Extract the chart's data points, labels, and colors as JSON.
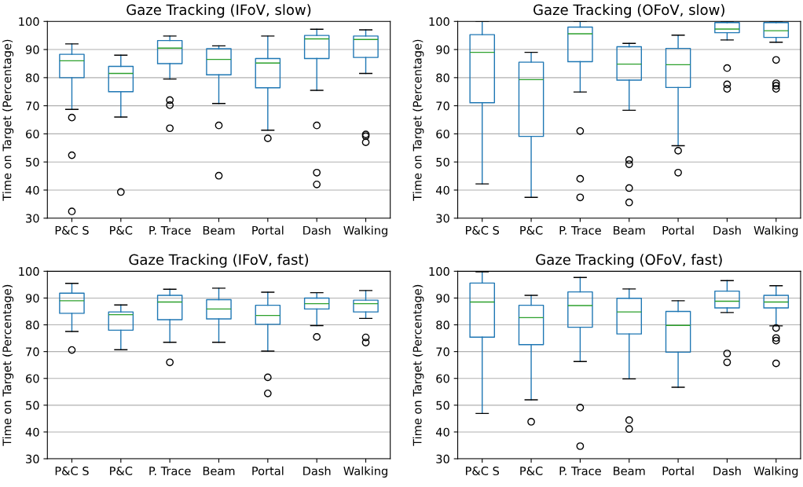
{
  "chart_data": [
    {
      "type": "box",
      "title": "Gaze Tracking (IFoV, slow)",
      "ylabel": "Time on Target (Percentage)",
      "categories": [
        "P&C S",
        "P&C",
        "P. Trace",
        "Beam",
        "Portal",
        "Dash",
        "Walking"
      ],
      "ylim": [
        30,
        100
      ],
      "yticks": [
        30,
        40,
        50,
        60,
        70,
        80,
        90,
        100
      ],
      "grid": "y",
      "legend": false,
      "series": [
        {
          "color": "#1f77b4",
          "boxes": [
            {
              "low": 68.7,
              "q1": 80,
              "median": 86,
              "q3": 88.3,
              "high": 92,
              "outliers": [
                65.8,
                52.4,
                32.4
              ]
            },
            {
              "low": 66,
              "q1": 75,
              "median": 81.5,
              "q3": 84,
              "high": 88,
              "outliers": [
                39.3
              ]
            },
            {
              "low": 79.5,
              "q1": 85,
              "median": 90.5,
              "q3": 93.2,
              "high": 94.8,
              "outliers": [
                72,
                70.2,
                62
              ]
            },
            {
              "low": 70.8,
              "q1": 81,
              "median": 86.5,
              "q3": 90.3,
              "high": 91.3,
              "outliers": [
                63,
                45.1
              ]
            },
            {
              "low": 61.3,
              "q1": 76.4,
              "median": 85.2,
              "q3": 86.8,
              "high": 94.8,
              "outliers": [
                58.4
              ]
            },
            {
              "low": 75.5,
              "q1": 86.8,
              "median": 93.8,
              "q3": 95,
              "high": 97.2,
              "outliers": [
                63,
                46.2,
                42
              ]
            },
            {
              "low": 81.5,
              "q1": 87.2,
              "median": 93.6,
              "q3": 94.8,
              "high": 97,
              "outliers": [
                59.8,
                59.2,
                57
              ]
            }
          ]
        }
      ]
    },
    {
      "type": "box",
      "title": "Gaze Tracking (OFoV, slow)",
      "ylabel": "Time on Target (Percentage)",
      "categories": [
        "P&C S",
        "P&C",
        "P. Trace",
        "Beam",
        "Portal",
        "Dash",
        "Walking"
      ],
      "ylim": [
        30,
        100
      ],
      "yticks": [
        30,
        40,
        50,
        60,
        70,
        80,
        90,
        100
      ],
      "grid": "y",
      "legend": false,
      "series": [
        {
          "color": "#1f77b4",
          "boxes": [
            {
              "low": 42.2,
              "q1": 71.1,
              "median": 89,
              "q3": 95.3,
              "high": 100
            },
            {
              "low": 37.4,
              "q1": 59.1,
              "median": 79.3,
              "q3": 85.5,
              "high": 89
            },
            {
              "low": 74.9,
              "q1": 85.7,
              "median": 95.6,
              "q3": 98,
              "high": 100,
              "outliers": [
                61,
                44,
                37.4
              ]
            },
            {
              "low": 68.4,
              "q1": 79.1,
              "median": 84.8,
              "q3": 91,
              "high": 92.2,
              "outliers": [
                50.7,
                49.2,
                40.7,
                35.6
              ]
            },
            {
              "low": 55.8,
              "q1": 76.5,
              "median": 84.6,
              "q3": 90.4,
              "high": 95.1,
              "outliers": [
                54,
                46.2
              ]
            },
            {
              "low": 93.4,
              "q1": 96,
              "median": 97.3,
              "q3": 99.6,
              "high": 100,
              "outliers": [
                83.4,
                77.6,
                76
              ]
            },
            {
              "low": 92.6,
              "q1": 94.3,
              "median": 96.7,
              "q3": 99.6,
              "high": 100,
              "outliers": [
                86.3,
                78,
                77.1,
                76
              ]
            }
          ]
        }
      ]
    },
    {
      "type": "box",
      "title": "Gaze Tracking (IFoV, fast)",
      "ylabel": "Time on Target (Percentage)",
      "categories": [
        "P&C S",
        "P&C",
        "P. Trace",
        "Beam",
        "Portal",
        "Dash",
        "Walking"
      ],
      "ylim": [
        30,
        100
      ],
      "yticks": [
        30,
        40,
        50,
        60,
        70,
        80,
        90,
        100
      ],
      "grid": "y",
      "legend": false,
      "series": [
        {
          "color": "#1f77b4",
          "boxes": [
            {
              "low": 77.5,
              "q1": 84.3,
              "median": 89,
              "q3": 91.8,
              "high": 95.5,
              "outliers": [
                70.6
              ]
            },
            {
              "low": 70.7,
              "q1": 78,
              "median": 83.8,
              "q3": 84.8,
              "high": 87.4
            },
            {
              "low": 73.5,
              "q1": 81.9,
              "median": 88.5,
              "q3": 91,
              "high": 93.3,
              "outliers": [
                66
              ]
            },
            {
              "low": 73.5,
              "q1": 82.2,
              "median": 85.9,
              "q3": 89.4,
              "high": 93.7
            },
            {
              "low": 70.2,
              "q1": 80.2,
              "median": 83.5,
              "q3": 87.3,
              "high": 92.2,
              "outliers": [
                60.4,
                54.4
              ]
            },
            {
              "low": 79.7,
              "q1": 85.9,
              "median": 87.9,
              "q3": 90,
              "high": 92,
              "outliers": [
                75.5
              ]
            },
            {
              "low": 82.4,
              "q1": 84.8,
              "median": 87.9,
              "q3": 89.2,
              "high": 92.8,
              "outliers": [
                75.3,
                73.4
              ]
            }
          ]
        }
      ]
    },
    {
      "type": "box",
      "title": "Gaze Tracking (OFoV, fast)",
      "ylabel": "Time on Target (Percentage)",
      "categories": [
        "P&C S",
        "P&C",
        "P. Trace",
        "Beam",
        "Portal",
        "Dash",
        "Walking"
      ],
      "ylim": [
        30,
        100
      ],
      "yticks": [
        30,
        40,
        50,
        60,
        70,
        80,
        90,
        100
      ],
      "grid": "y",
      "legend": false,
      "series": [
        {
          "color": "#1f77b4",
          "boxes": [
            {
              "low": 46.9,
              "q1": 75.4,
              "median": 88.5,
              "q3": 95.6,
              "high": 99.8
            },
            {
              "low": 52,
              "q1": 72.6,
              "median": 82.7,
              "q3": 87.3,
              "high": 91,
              "outliers": [
                43.8
              ]
            },
            {
              "low": 66.3,
              "q1": 79.1,
              "median": 87.2,
              "q3": 92.3,
              "high": 97.7,
              "outliers": [
                49.1,
                34.7
              ]
            },
            {
              "low": 59.8,
              "q1": 76.6,
              "median": 84.8,
              "q3": 89.9,
              "high": 93.4,
              "outliers": [
                44.4,
                41.1
              ]
            },
            {
              "low": 56.7,
              "q1": 69.8,
              "median": 79.8,
              "q3": 85,
              "high": 89
            },
            {
              "low": 84.6,
              "q1": 86.3,
              "median": 88.8,
              "q3": 92.6,
              "high": 96.5,
              "outliers": [
                69.3,
                66
              ]
            },
            {
              "low": 79.6,
              "q1": 86.3,
              "median": 88.5,
              "q3": 91,
              "high": 94.6,
              "outliers": [
                78.8,
                75.1,
                74.1,
                65.6
              ]
            }
          ]
        }
      ]
    }
  ]
}
